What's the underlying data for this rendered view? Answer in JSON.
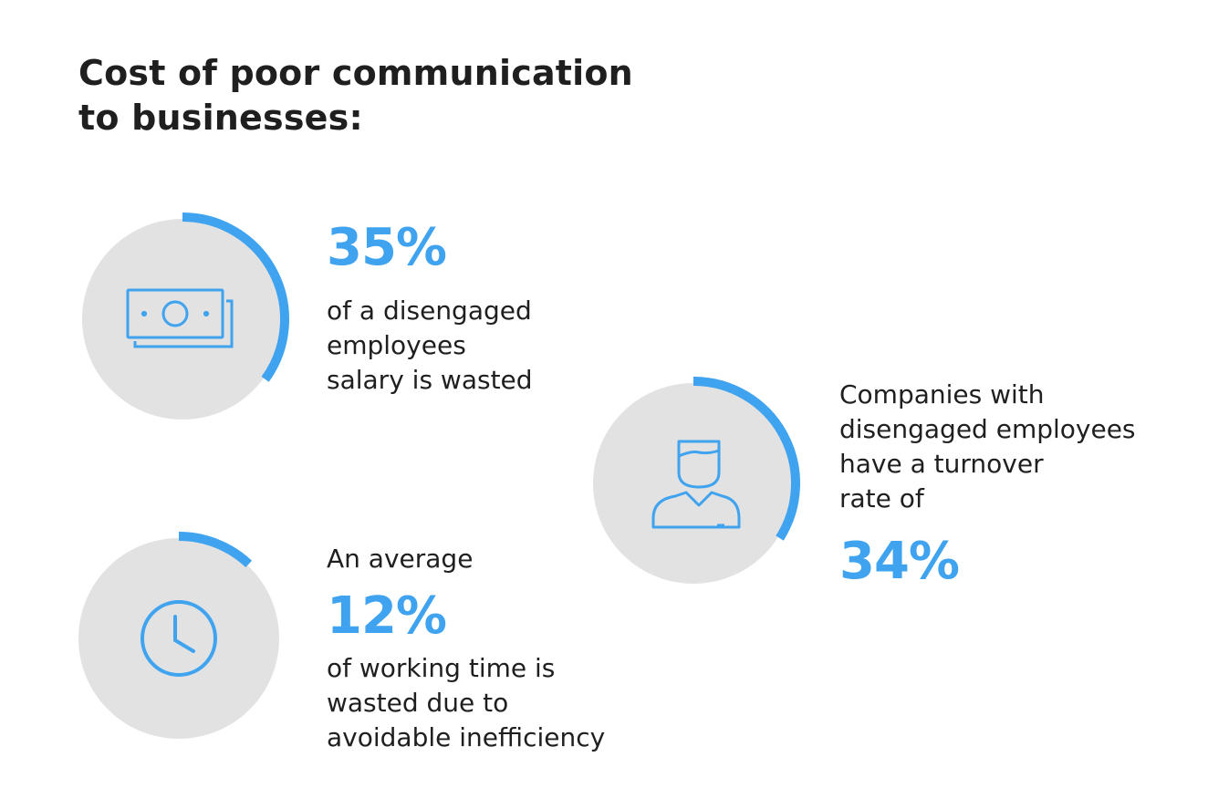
{
  "title": {
    "line1": "Cost of poor communication",
    "line2": "to businesses:"
  },
  "accent_color": "#3fa3ef",
  "circle_color": "#e2e2e2",
  "stats": [
    {
      "icon": "money-icon",
      "value": 35,
      "value_label": "35%",
      "description": [
        "of a disengaged",
        "employees",
        "salary is wasted"
      ]
    },
    {
      "icon": "user-icon",
      "value": 34,
      "value_label": "34%",
      "description": [
        "Companies with",
        "disengaged employees",
        "have a turnover",
        "rate of"
      ]
    },
    {
      "icon": "clock-icon",
      "prefix": "An average",
      "value": 12,
      "value_label": "12%",
      "description": [
        "of working time is",
        "wasted due to",
        "avoidable inefficiency"
      ]
    }
  ]
}
